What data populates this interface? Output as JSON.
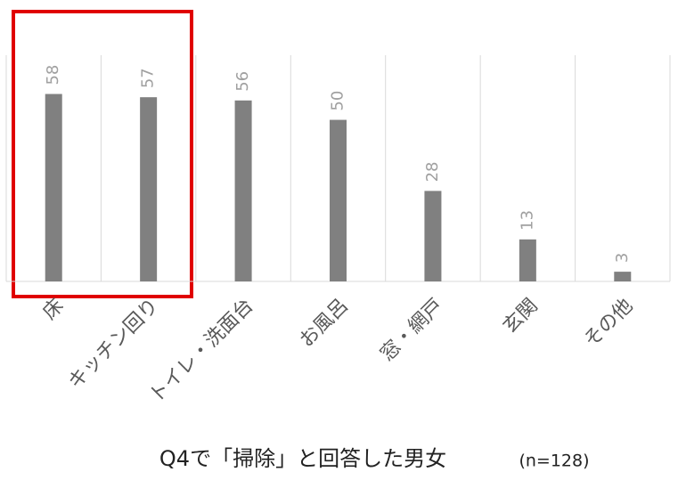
{
  "chart_data": {
    "type": "bar",
    "title": "Q4で「掃除」と回答した男女",
    "annotation": "(n=128)",
    "categories": [
      "床",
      "キッチン回り",
      "トイレ・洗面台",
      "お風呂",
      "窓・網戸",
      "玄関",
      "その他"
    ],
    "values": [
      58,
      57,
      56,
      50,
      28,
      13,
      3
    ],
    "color": "#808080",
    "ylim": [
      0,
      70
    ]
  }
}
